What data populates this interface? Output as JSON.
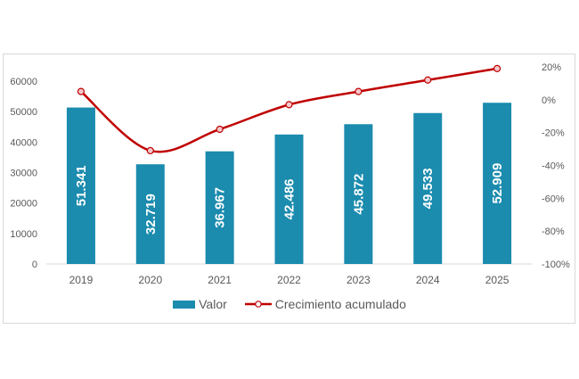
{
  "chart_data": {
    "type": "bar+line",
    "title": "",
    "categories": [
      "2019",
      "2020",
      "2021",
      "2022",
      "2023",
      "2024",
      "2025"
    ],
    "series": [
      {
        "name": "Valor",
        "type": "bar",
        "axis": "left",
        "color": "#1B8BAE",
        "values": [
          51341,
          32719,
          36967,
          42486,
          45872,
          49533,
          52909
        ],
        "labels": [
          "51.341",
          "32.719",
          "36.967",
          "42.486",
          "45.872",
          "49.533",
          "52.909"
        ]
      },
      {
        "name": "Crecimiento acumulado",
        "type": "line",
        "axis": "right",
        "color": "#C00000",
        "marker_fill": "#F4C7CC",
        "smooth": true,
        "values": [
          0.05,
          -0.31,
          -0.18,
          -0.03,
          0.05,
          0.12,
          0.19
        ]
      }
    ],
    "y_left": {
      "ticks": [
        "0",
        "10000",
        "20000",
        "30000",
        "40000",
        "50000",
        "60000"
      ],
      "range": [
        0,
        60000
      ]
    },
    "y_right": {
      "ticks": [
        "-100%",
        "-80%",
        "-60%",
        "-40%",
        "-20%",
        "0%",
        "20%"
      ],
      "range": [
        -1.0,
        0.2
      ]
    },
    "xlabel": "",
    "ylabel": "",
    "grid": false,
    "legend_position": "bottom"
  },
  "legend": {
    "bar_label": "Valor",
    "line_label": "Crecimiento acumulado"
  }
}
